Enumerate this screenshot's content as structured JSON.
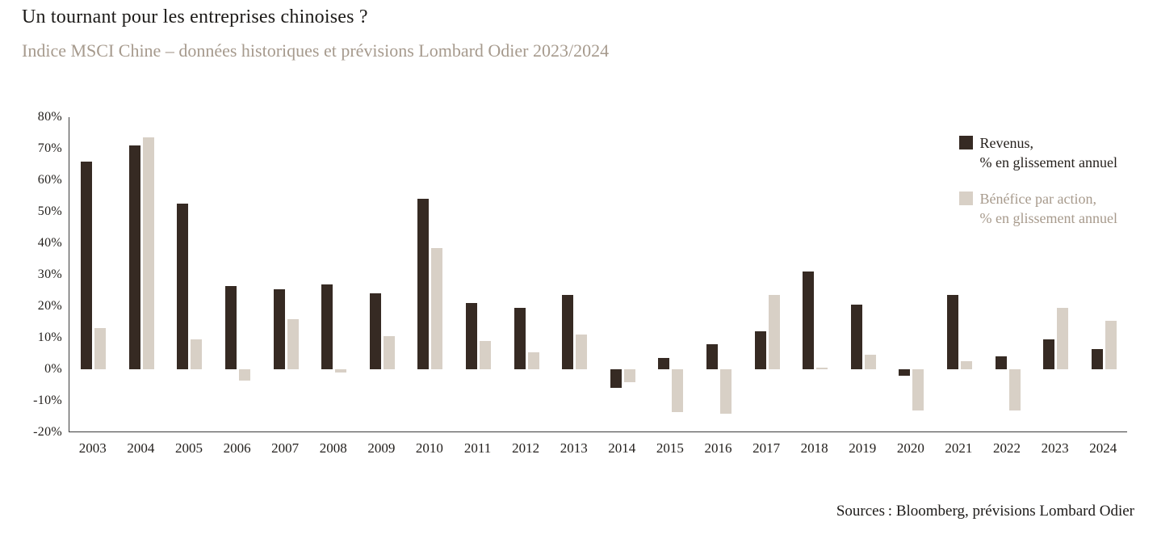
{
  "title": "Un tournant pour les entreprises chinoises ?",
  "subtitle": "Indice MSCI Chine – données historiques et prévisions Lombard Odier 2023/2024",
  "source": "Sources : Bloomberg, prévisions Lombard Odier",
  "colors": {
    "revenus": "#362a23",
    "benefice": "#d8d0c6",
    "subtitle_text": "#a69a8d",
    "legend_revenus_text": "#241f1b",
    "legend_benefice_text": "#a79a8c",
    "axis": "#3c3c3c"
  },
  "legend": {
    "items": [
      {
        "label": "Revenus,\n% en glissement annuel",
        "color": "#362a23",
        "text_color": "#241f1b"
      },
      {
        "label": "Bénéfice par action,\n% en glissement annuel",
        "color": "#d8d0c6",
        "text_color": "#a79a8c"
      }
    ]
  },
  "chart_data": {
    "type": "bar",
    "title": "Indice MSCI Chine – données historiques et prévisions Lombard Odier 2023/2024",
    "categories": [
      "2003",
      "2004",
      "2005",
      "2006",
      "2007",
      "2008",
      "2009",
      "2010",
      "2011",
      "2012",
      "2013",
      "2014",
      "2015",
      "2016",
      "2017",
      "2018",
      "2019",
      "2020",
      "2021",
      "2022",
      "2023",
      "2024"
    ],
    "series": [
      {
        "name": "Revenus, % en glissement annuel",
        "color": "#362a23",
        "values": [
          66,
          71,
          52.5,
          26.5,
          25.5,
          27,
          24,
          54,
          21,
          19.5,
          23.5,
          -6,
          3.5,
          8,
          12,
          31,
          20.5,
          -2,
          23.5,
          4,
          9.5,
          6.5
        ]
      },
      {
        "name": "Bénéfice par action, % en glissement annuel",
        "color": "#d8d0c6",
        "values": [
          13,
          73.5,
          9.5,
          -3.5,
          16,
          -1,
          10.5,
          38.5,
          9,
          5.5,
          11,
          -4,
          -13.5,
          -14,
          23.5,
          0.5,
          4.5,
          -13,
          2.5,
          -13,
          19.5,
          15.5
        ]
      }
    ],
    "ylim": [
      -20,
      80
    ],
    "yticks": [
      80,
      70,
      60,
      50,
      40,
      30,
      20,
      10,
      0,
      -10,
      -20
    ],
    "ytick_suffix": "%",
    "grid": false,
    "legend_position": "top-right"
  }
}
